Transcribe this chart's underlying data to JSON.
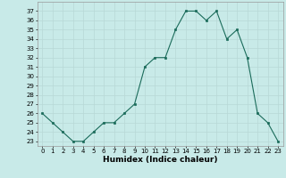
{
  "x": [
    0,
    1,
    2,
    3,
    4,
    5,
    6,
    7,
    8,
    9,
    10,
    11,
    12,
    13,
    14,
    15,
    16,
    17,
    18,
    19,
    20,
    21,
    22,
    23
  ],
  "y": [
    26,
    25,
    24,
    23,
    23,
    24,
    25,
    25,
    26,
    27,
    31,
    32,
    32,
    35,
    37,
    37,
    36,
    37,
    34,
    35,
    32,
    26,
    25,
    23
  ],
  "line_color": "#1a6b5a",
  "marker_color": "#1a6b5a",
  "bg_color": "#c8eae8",
  "grid_color": "#b8d8d6",
  "xlabel": "Humidex (Indice chaleur)",
  "xlabel_fontsize": 6.5,
  "ylabel_ticks": [
    23,
    24,
    25,
    26,
    27,
    28,
    29,
    30,
    31,
    32,
    33,
    34,
    35,
    36,
    37
  ],
  "xlim": [
    -0.5,
    23.5
  ],
  "ylim": [
    22.5,
    38.0
  ],
  "xticks": [
    0,
    1,
    2,
    3,
    4,
    5,
    6,
    7,
    8,
    9,
    10,
    11,
    12,
    13,
    14,
    15,
    16,
    17,
    18,
    19,
    20,
    21,
    22,
    23
  ],
  "tick_fontsize": 5.0
}
